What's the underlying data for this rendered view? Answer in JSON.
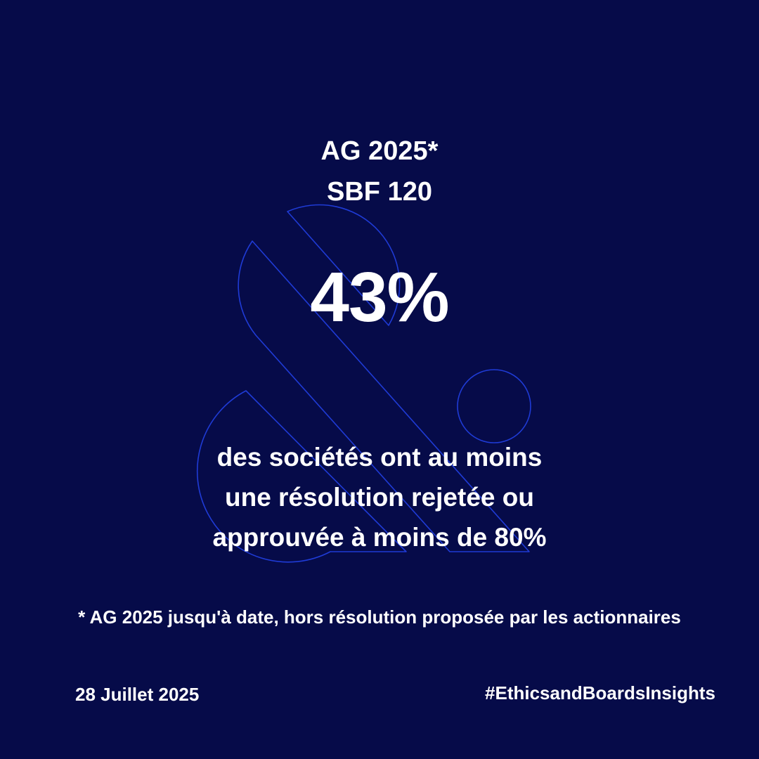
{
  "colors": {
    "background": "#060b49",
    "text": "#ffffff",
    "logo_outline": "#1f3bd6"
  },
  "header": {
    "line1": "AG 2025*",
    "line2": "SBF 120"
  },
  "stat": {
    "value": "43%"
  },
  "description": {
    "line1": "des sociétés ont au moins",
    "line2": "une résolution rejetée ou",
    "line3": "approuvée à moins de 80%"
  },
  "footnote": "* AG 2025 jusqu'à date, hors résolution proposée par les actionnaires",
  "footer": {
    "date": "28 Juillet 2025",
    "hashtag": "#EthicsandBoardsInsights"
  },
  "decoration": {
    "icon": "ampersand-logo-outline-icon"
  }
}
